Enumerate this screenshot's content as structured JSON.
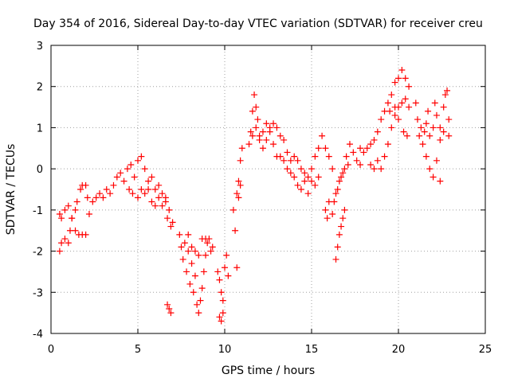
{
  "chart_data": {
    "type": "scatter",
    "title": "Day 354 of 2016, Sidereal Day-to-day VTEC variation (SDTVAR) for receiver creu",
    "xlabel": "GPS time / hours",
    "ylabel": "SDTVAR / TECUs",
    "xlim": [
      0,
      25
    ],
    "ylim": [
      -4,
      3
    ],
    "xticks": [
      "0",
      "5",
      "10",
      "15",
      "20",
      "25"
    ],
    "yticks": [
      "-4",
      "-3",
      "-2",
      "-1",
      "0",
      "1",
      "2",
      "3"
    ],
    "grid": true,
    "marker": "+",
    "marker_color": "#ff0000",
    "series": [
      {
        "name": "SDTVAR",
        "points": [
          [
            0.5,
            -2.0
          ],
          [
            0.6,
            -1.8
          ],
          [
            0.8,
            -1.7
          ],
          [
            1.0,
            -1.8
          ],
          [
            1.1,
            -1.5
          ],
          [
            1.2,
            -1.2
          ],
          [
            1.4,
            -1.0
          ],
          [
            1.5,
            -0.8
          ],
          [
            1.7,
            -0.5
          ],
          [
            1.8,
            -0.4
          ],
          [
            2.0,
            -0.4
          ],
          [
            2.1,
            -0.7
          ],
          [
            0.5,
            -1.1
          ],
          [
            0.6,
            -1.2
          ],
          [
            0.8,
            -1.0
          ],
          [
            1.0,
            -0.9
          ],
          [
            1.2,
            -1.2
          ],
          [
            1.4,
            -1.5
          ],
          [
            1.6,
            -1.6
          ],
          [
            1.8,
            -1.6
          ],
          [
            2.0,
            -1.6
          ],
          [
            2.2,
            -1.1
          ],
          [
            2.4,
            -0.8
          ],
          [
            2.6,
            -0.7
          ],
          [
            2.8,
            -0.6
          ],
          [
            3.0,
            -0.7
          ],
          [
            3.2,
            -0.5
          ],
          [
            3.4,
            -0.6
          ],
          [
            3.6,
            -0.4
          ],
          [
            3.8,
            -0.2
          ],
          [
            4.0,
            -0.1
          ],
          [
            4.2,
            -0.3
          ],
          [
            4.4,
            0.0
          ],
          [
            4.6,
            0.1
          ],
          [
            4.8,
            -0.2
          ],
          [
            5.0,
            0.2
          ],
          [
            5.2,
            0.3
          ],
          [
            5.4,
            0.0
          ],
          [
            5.6,
            -0.3
          ],
          [
            5.8,
            -0.2
          ],
          [
            6.0,
            -0.5
          ],
          [
            6.2,
            -0.4
          ],
          [
            6.4,
            -0.9
          ],
          [
            6.6,
            -0.7
          ],
          [
            6.7,
            -1.2
          ],
          [
            6.8,
            -1.0
          ],
          [
            6.9,
            -1.4
          ],
          [
            7.0,
            -1.3
          ],
          [
            4.5,
            -0.5
          ],
          [
            4.7,
            -0.6
          ],
          [
            5.0,
            -0.7
          ],
          [
            5.2,
            -0.5
          ],
          [
            5.4,
            -0.6
          ],
          [
            5.6,
            -0.5
          ],
          [
            5.8,
            -0.8
          ],
          [
            6.0,
            -0.9
          ],
          [
            6.2,
            -0.7
          ],
          [
            6.4,
            -0.6
          ],
          [
            6.6,
            -0.8
          ],
          [
            7.4,
            -1.6
          ],
          [
            7.5,
            -1.9
          ],
          [
            7.6,
            -2.2
          ],
          [
            7.8,
            -2.5
          ],
          [
            7.9,
            -2.0
          ],
          [
            8.0,
            -2.8
          ],
          [
            8.1,
            -2.3
          ],
          [
            8.2,
            -3.0
          ],
          [
            8.3,
            -2.6
          ],
          [
            8.4,
            -3.3
          ],
          [
            8.5,
            -3.5
          ],
          [
            8.6,
            -3.2
          ],
          [
            8.7,
            -2.9
          ],
          [
            8.8,
            -2.5
          ],
          [
            8.9,
            -2.1
          ],
          [
            9.0,
            -1.8
          ],
          [
            9.1,
            -1.7
          ],
          [
            9.2,
            -2.0
          ],
          [
            9.3,
            -1.9
          ],
          [
            7.7,
            -1.8
          ],
          [
            7.9,
            -1.6
          ],
          [
            8.1,
            -1.9
          ],
          [
            8.3,
            -2.0
          ],
          [
            8.5,
            -2.1
          ],
          [
            8.7,
            -1.7
          ],
          [
            8.9,
            -1.7
          ],
          [
            6.7,
            -3.3
          ],
          [
            6.8,
            -3.4
          ],
          [
            6.9,
            -3.5
          ],
          [
            9.6,
            -2.5
          ],
          [
            9.7,
            -2.7
          ],
          [
            9.8,
            -3.0
          ],
          [
            9.9,
            -3.2
          ],
          [
            10.0,
            -2.4
          ],
          [
            10.1,
            -2.1
          ],
          [
            9.7,
            -3.6
          ],
          [
            9.8,
            -3.7
          ],
          [
            9.9,
            -3.5
          ],
          [
            10.2,
            -2.6
          ],
          [
            10.5,
            -1.0
          ],
          [
            10.6,
            -1.5
          ],
          [
            10.7,
            -2.4
          ],
          [
            10.7,
            -0.6
          ],
          [
            10.8,
            -0.3
          ],
          [
            10.9,
            0.2
          ],
          [
            11.0,
            0.5
          ],
          [
            10.8,
            -0.7
          ],
          [
            10.9,
            -0.4
          ],
          [
            11.4,
            0.6
          ],
          [
            11.5,
            0.9
          ],
          [
            11.6,
            1.4
          ],
          [
            11.7,
            1.8
          ],
          [
            11.8,
            1.5
          ],
          [
            11.9,
            1.2
          ],
          [
            12.0,
            0.7
          ],
          [
            12.2,
            0.5
          ],
          [
            12.4,
            0.7
          ],
          [
            12.6,
            0.9
          ],
          [
            12.8,
            0.6
          ],
          [
            13.0,
            0.3
          ],
          [
            11.6,
            0.8
          ],
          [
            11.8,
            1.0
          ],
          [
            12.0,
            0.8
          ],
          [
            12.2,
            0.9
          ],
          [
            12.4,
            1.1
          ],
          [
            12.6,
            1.0
          ],
          [
            12.8,
            1.1
          ],
          [
            13.0,
            1.0
          ],
          [
            13.2,
            0.8
          ],
          [
            13.4,
            0.7
          ],
          [
            13.6,
            0.4
          ],
          [
            13.8,
            0.2
          ],
          [
            13.2,
            0.3
          ],
          [
            13.4,
            0.2
          ],
          [
            13.6,
            0.0
          ],
          [
            13.8,
            -0.1
          ],
          [
            14.0,
            -0.2
          ],
          [
            14.2,
            -0.4
          ],
          [
            14.4,
            -0.5
          ],
          [
            14.6,
            -0.3
          ],
          [
            14.8,
            -0.6
          ],
          [
            15.0,
            -0.3
          ],
          [
            15.2,
            -0.4
          ],
          [
            15.4,
            -0.2
          ],
          [
            14.0,
            0.3
          ],
          [
            14.2,
            0.2
          ],
          [
            14.4,
            0.0
          ],
          [
            14.6,
            -0.1
          ],
          [
            14.8,
            -0.2
          ],
          [
            15.0,
            0.0
          ],
          [
            15.2,
            0.3
          ],
          [
            15.4,
            0.5
          ],
          [
            15.6,
            0.8
          ],
          [
            15.8,
            0.5
          ],
          [
            16.0,
            0.3
          ],
          [
            16.2,
            0.0
          ],
          [
            15.8,
            -1.0
          ],
          [
            15.9,
            -1.2
          ],
          [
            16.0,
            -0.8
          ],
          [
            16.2,
            -1.1
          ],
          [
            16.4,
            -0.6
          ],
          [
            16.6,
            -0.3
          ],
          [
            16.8,
            -0.1
          ],
          [
            17.0,
            0.3
          ],
          [
            17.2,
            0.6
          ],
          [
            17.4,
            0.4
          ],
          [
            17.6,
            0.2
          ],
          [
            17.8,
            0.1
          ],
          [
            16.4,
            -2.2
          ],
          [
            16.5,
            -1.9
          ],
          [
            16.6,
            -1.6
          ],
          [
            16.7,
            -1.4
          ],
          [
            16.8,
            -1.2
          ],
          [
            16.9,
            -1.0
          ],
          [
            16.3,
            -0.8
          ],
          [
            16.5,
            -0.5
          ],
          [
            16.7,
            -0.2
          ],
          [
            16.9,
            0.0
          ],
          [
            17.1,
            0.1
          ],
          [
            17.8,
            0.5
          ],
          [
            18.0,
            0.4
          ],
          [
            18.2,
            0.5
          ],
          [
            18.4,
            0.6
          ],
          [
            18.6,
            0.7
          ],
          [
            18.8,
            0.9
          ],
          [
            19.0,
            1.2
          ],
          [
            19.2,
            1.4
          ],
          [
            19.4,
            1.6
          ],
          [
            19.6,
            1.8
          ],
          [
            19.8,
            2.1
          ],
          [
            20.0,
            2.2
          ],
          [
            20.2,
            2.4
          ],
          [
            20.4,
            2.2
          ],
          [
            20.6,
            2.0
          ],
          [
            18.4,
            0.1
          ],
          [
            18.6,
            0.0
          ],
          [
            18.8,
            0.2
          ],
          [
            19.0,
            0.0
          ],
          [
            19.2,
            0.3
          ],
          [
            19.4,
            0.6
          ],
          [
            19.6,
            1.0
          ],
          [
            19.8,
            1.3
          ],
          [
            20.0,
            1.5
          ],
          [
            20.2,
            1.6
          ],
          [
            20.4,
            1.7
          ],
          [
            20.6,
            1.5
          ],
          [
            19.5,
            1.4
          ],
          [
            19.8,
            1.5
          ],
          [
            20.0,
            1.2
          ],
          [
            20.3,
            0.9
          ],
          [
            20.5,
            0.8
          ],
          [
            21.0,
            1.6
          ],
          [
            21.1,
            1.2
          ],
          [
            21.2,
            0.8
          ],
          [
            21.3,
            1.0
          ],
          [
            21.4,
            0.6
          ],
          [
            21.5,
            0.9
          ],
          [
            21.6,
            1.1
          ],
          [
            21.8,
            0.8
          ],
          [
            22.0,
            1.0
          ],
          [
            22.2,
            1.3
          ],
          [
            22.4,
            1.0
          ],
          [
            22.6,
            1.5
          ],
          [
            22.7,
            1.8
          ],
          [
            22.8,
            1.9
          ],
          [
            22.9,
            1.2
          ],
          [
            22.9,
            0.8
          ],
          [
            22.6,
            0.9
          ],
          [
            22.4,
            0.7
          ],
          [
            21.6,
            0.3
          ],
          [
            21.8,
            0.0
          ],
          [
            22.0,
            -0.2
          ],
          [
            22.2,
            0.2
          ],
          [
            22.4,
            -0.3
          ],
          [
            21.7,
            1.4
          ],
          [
            22.1,
            1.6
          ]
        ]
      }
    ]
  }
}
